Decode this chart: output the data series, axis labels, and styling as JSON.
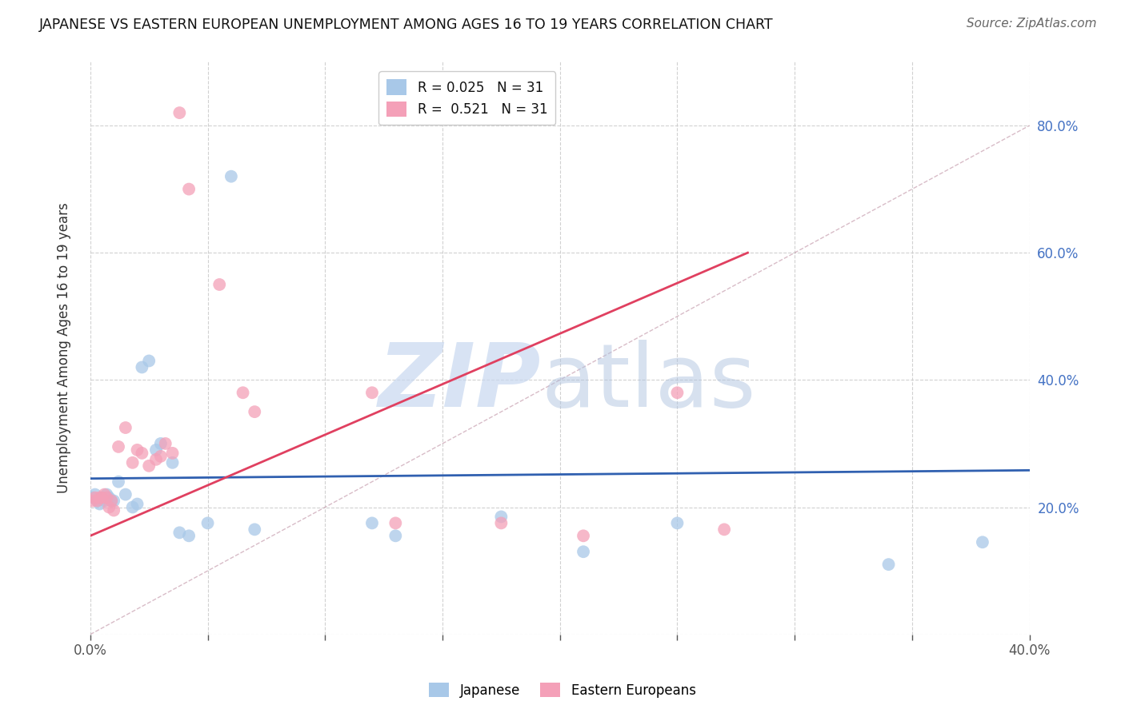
{
  "title": "JAPANESE VS EASTERN EUROPEAN UNEMPLOYMENT AMONG AGES 16 TO 19 YEARS CORRELATION CHART",
  "source": "Source: ZipAtlas.com",
  "ylabel": "Unemployment Among Ages 16 to 19 years",
  "xlim": [
    0.0,
    0.4
  ],
  "ylim": [
    0.0,
    0.9
  ],
  "r_japanese": 0.025,
  "n_japanese": 31,
  "r_eastern": 0.521,
  "n_eastern": 31,
  "japanese_color": "#a8c8e8",
  "eastern_color": "#f4a0b8",
  "japanese_line_color": "#3060b0",
  "eastern_line_color": "#e04060",
  "diagonal_color": "#d0a0b0",
  "jp_line_x0": 0.0,
  "jp_line_y0": 0.245,
  "jp_line_x1": 0.4,
  "jp_line_y1": 0.258,
  "ee_line_x0": 0.0,
  "ee_line_y0": 0.155,
  "ee_line_x1": 0.28,
  "ee_line_y1": 0.6,
  "japanese_x": [
    0.001,
    0.002,
    0.003,
    0.004,
    0.005,
    0.006,
    0.007,
    0.008,
    0.009,
    0.01,
    0.012,
    0.015,
    0.018,
    0.02,
    0.022,
    0.025,
    0.028,
    0.03,
    0.035,
    0.038,
    0.042,
    0.05,
    0.06,
    0.07,
    0.12,
    0.13,
    0.175,
    0.21,
    0.25,
    0.34,
    0.38
  ],
  "japanese_y": [
    0.215,
    0.22,
    0.21,
    0.205,
    0.215,
    0.21,
    0.22,
    0.215,
    0.21,
    0.21,
    0.24,
    0.22,
    0.2,
    0.205,
    0.42,
    0.43,
    0.29,
    0.3,
    0.27,
    0.16,
    0.155,
    0.175,
    0.72,
    0.165,
    0.175,
    0.155,
    0.185,
    0.13,
    0.175,
    0.11,
    0.145
  ],
  "eastern_x": [
    0.001,
    0.002,
    0.003,
    0.004,
    0.005,
    0.006,
    0.007,
    0.008,
    0.009,
    0.01,
    0.012,
    0.015,
    0.018,
    0.02,
    0.022,
    0.025,
    0.028,
    0.03,
    0.032,
    0.035,
    0.038,
    0.042,
    0.055,
    0.065,
    0.07,
    0.12,
    0.13,
    0.175,
    0.21,
    0.25,
    0.27
  ],
  "eastern_y": [
    0.21,
    0.215,
    0.21,
    0.215,
    0.215,
    0.22,
    0.215,
    0.2,
    0.21,
    0.195,
    0.295,
    0.325,
    0.27,
    0.29,
    0.285,
    0.265,
    0.275,
    0.28,
    0.3,
    0.285,
    0.82,
    0.7,
    0.55,
    0.38,
    0.35,
    0.38,
    0.175,
    0.175,
    0.155,
    0.38,
    0.165
  ]
}
